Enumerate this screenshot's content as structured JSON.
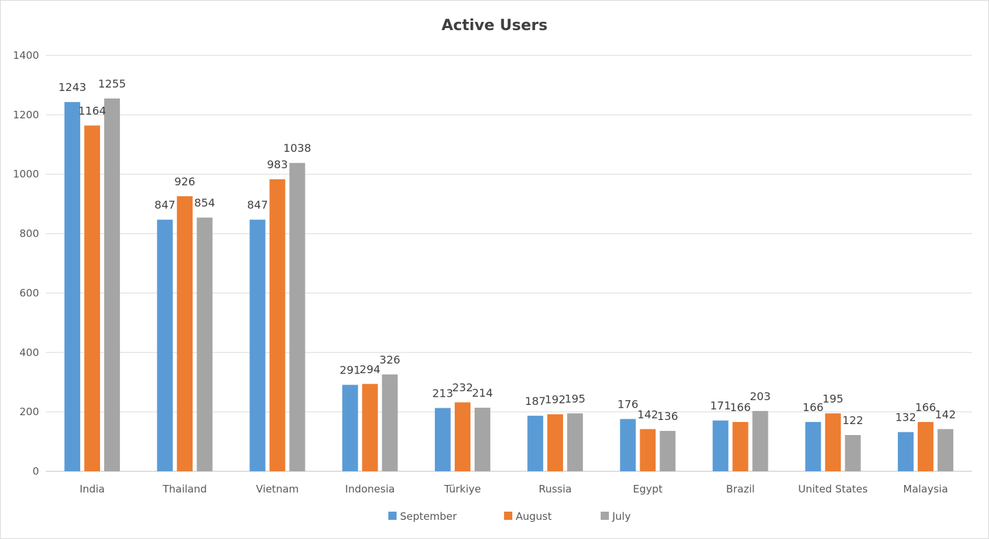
{
  "chart_data": {
    "type": "bar",
    "title": "Active Users",
    "categories": [
      "India",
      "Thailand",
      "Vietnam",
      "Indonesia",
      "Türkiye",
      "Russia",
      "Egypt",
      "Brazil",
      "United States",
      "Malaysia"
    ],
    "series": [
      {
        "name": "September",
        "color": "#5b9bd5",
        "values": [
          1243,
          847,
          847,
          291,
          213,
          187,
          176,
          171,
          166,
          132
        ]
      },
      {
        "name": "August",
        "color": "#ed7d31",
        "values": [
          1164,
          926,
          983,
          294,
          232,
          192,
          142,
          166,
          195,
          166
        ]
      },
      {
        "name": "July",
        "color": "#a5a5a5",
        "values": [
          1255,
          854,
          1038,
          326,
          214,
          195,
          136,
          203,
          122,
          142
        ]
      }
    ],
    "y_ticks": [
      "0",
      "200",
      "400",
      "600",
      "800",
      "1000",
      "1200",
      "1400"
    ],
    "ylim": [
      0,
      1400
    ],
    "grid": true,
    "legend": "bottom",
    "data_labels": true
  }
}
